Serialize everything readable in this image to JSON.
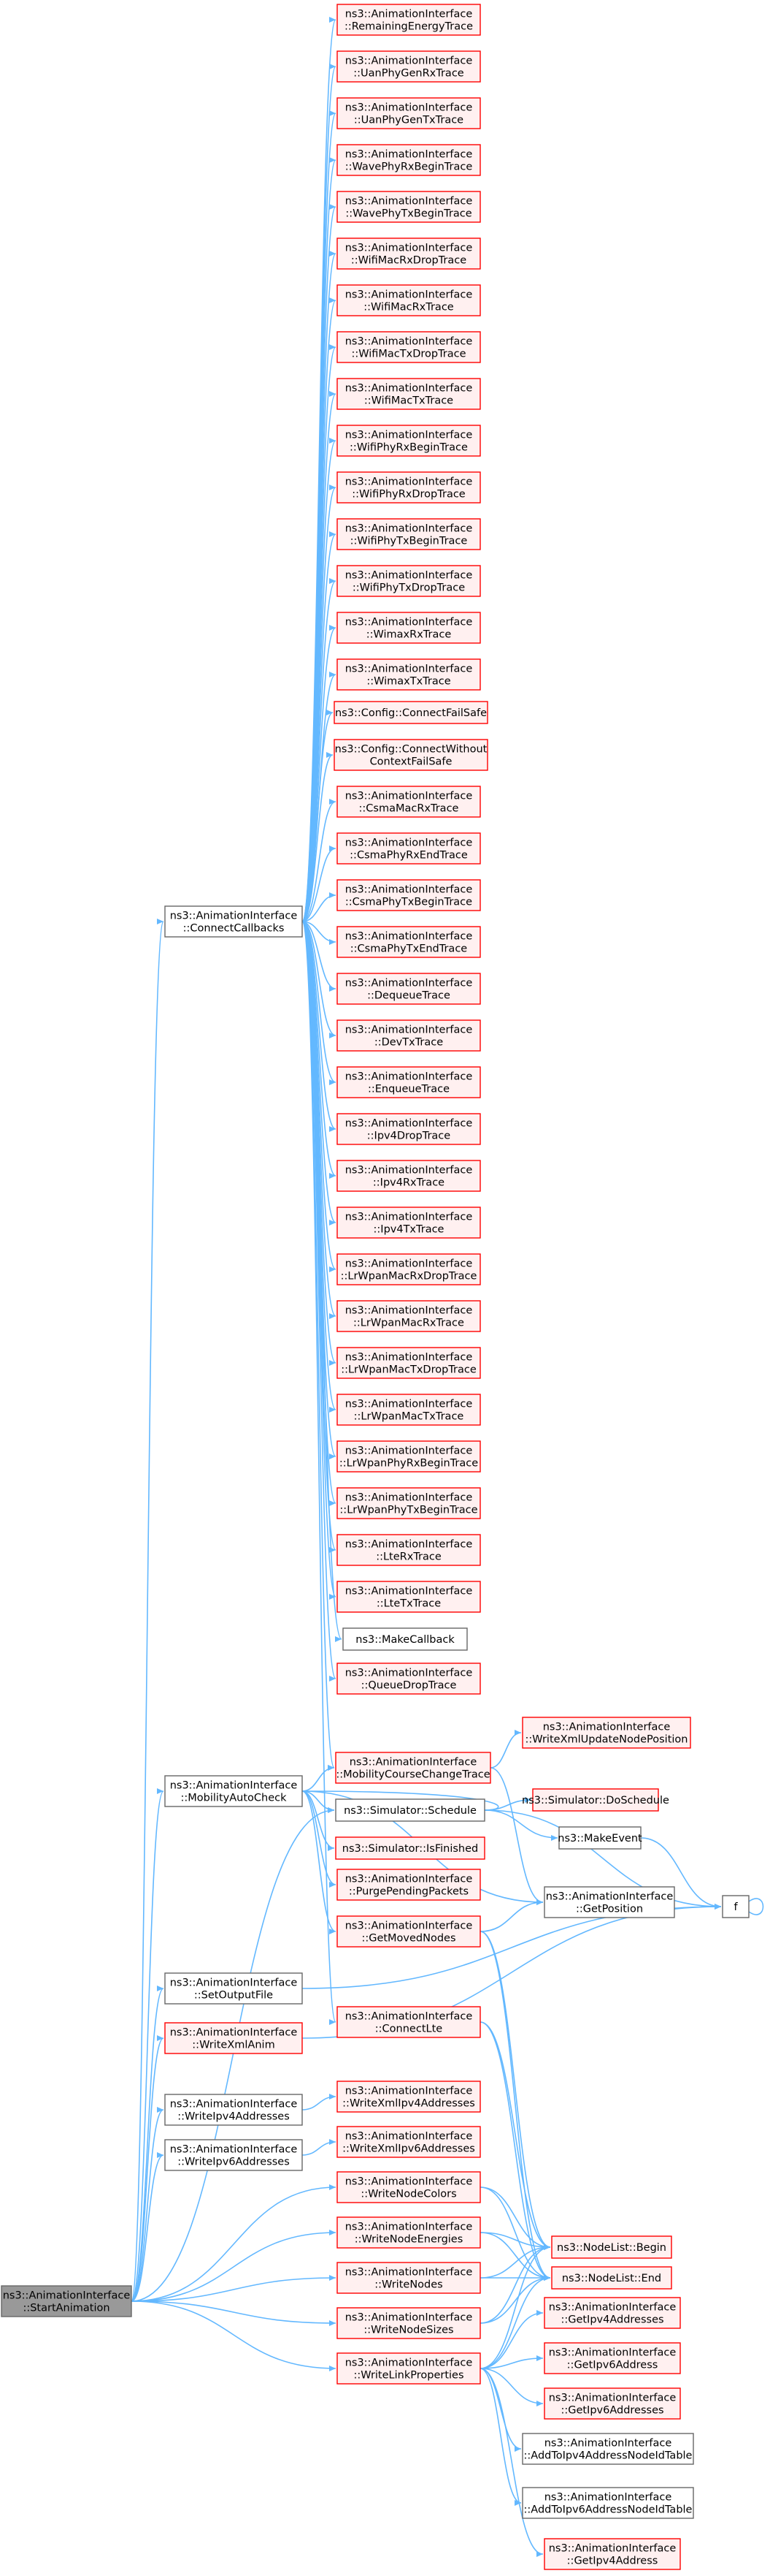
{
  "colors": {
    "edge": "#63b8ff",
    "red_border": "#ff0000",
    "red_fill": "#fff0f0",
    "plain_border": "#666666",
    "plain_fill": "#ffffff",
    "root_fill": "#999999",
    "root_border": "#666666"
  },
  "nodes": [
    {
      "id": "root",
      "lines": [
        "ns3::AnimationInterface",
        "::StartAnimation"
      ],
      "style": "root"
    },
    {
      "id": "cc",
      "lines": [
        "ns3::AnimationInterface",
        "::ConnectCallbacks"
      ],
      "style": "plain"
    },
    {
      "id": "mac",
      "lines": [
        "ns3::AnimationInterface",
        "::MobilityAutoCheck"
      ],
      "style": "plain"
    },
    {
      "id": "sof",
      "lines": [
        "ns3::AnimationInterface",
        "::SetOutputFile"
      ],
      "style": "plain"
    },
    {
      "id": "wxa",
      "lines": [
        "ns3::AnimationInterface",
        "::WriteXmlAnim"
      ],
      "style": "red"
    },
    {
      "id": "w4a",
      "lines": [
        "ns3::AnimationInterface",
        "::WriteIpv4Addresses"
      ],
      "style": "plain"
    },
    {
      "id": "w6a",
      "lines": [
        "ns3::AnimationInterface",
        "::WriteIpv6Addresses"
      ],
      "style": "plain"
    },
    {
      "id": "rem",
      "lines": [
        "ns3::AnimationInterface",
        "::RemainingEnergyTrace"
      ],
      "style": "red"
    },
    {
      "id": "uanrx",
      "lines": [
        "ns3::AnimationInterface",
        "::UanPhyGenRxTrace"
      ],
      "style": "red"
    },
    {
      "id": "uantx",
      "lines": [
        "ns3::AnimationInterface",
        "::UanPhyGenTxTrace"
      ],
      "style": "red"
    },
    {
      "id": "waverx",
      "lines": [
        "ns3::AnimationInterface",
        "::WavePhyRxBeginTrace"
      ],
      "style": "red"
    },
    {
      "id": "wavetx",
      "lines": [
        "ns3::AnimationInterface",
        "::WavePhyTxBeginTrace"
      ],
      "style": "red"
    },
    {
      "id": "wmrd",
      "lines": [
        "ns3::AnimationInterface",
        "::WifiMacRxDropTrace"
      ],
      "style": "red"
    },
    {
      "id": "wmr",
      "lines": [
        "ns3::AnimationInterface",
        "::WifiMacRxTrace"
      ],
      "style": "red"
    },
    {
      "id": "wmtd",
      "lines": [
        "ns3::AnimationInterface",
        "::WifiMacTxDropTrace"
      ],
      "style": "red"
    },
    {
      "id": "wmt",
      "lines": [
        "ns3::AnimationInterface",
        "::WifiMacTxTrace"
      ],
      "style": "red"
    },
    {
      "id": "wprb",
      "lines": [
        "ns3::AnimationInterface",
        "::WifiPhyRxBeginTrace"
      ],
      "style": "red"
    },
    {
      "id": "wprd",
      "lines": [
        "ns3::AnimationInterface",
        "::WifiPhyRxDropTrace"
      ],
      "style": "red"
    },
    {
      "id": "wptb",
      "lines": [
        "ns3::AnimationInterface",
        "::WifiPhyTxBeginTrace"
      ],
      "style": "red"
    },
    {
      "id": "wptd",
      "lines": [
        "ns3::AnimationInterface",
        "::WifiPhyTxDropTrace"
      ],
      "style": "red"
    },
    {
      "id": "wxr",
      "lines": [
        "ns3::AnimationInterface",
        "::WimaxRxTrace"
      ],
      "style": "red"
    },
    {
      "id": "wxt",
      "lines": [
        "ns3::AnimationInterface",
        "::WimaxTxTrace"
      ],
      "style": "red"
    },
    {
      "id": "cfs",
      "lines": [
        "ns3::Config::ConnectFailSafe"
      ],
      "style": "red"
    },
    {
      "id": "cwcfs",
      "lines": [
        "ns3::Config::ConnectWithout",
        "ContextFailSafe"
      ],
      "style": "red"
    },
    {
      "id": "cmr",
      "lines": [
        "ns3::AnimationInterface",
        "::CsmaMacRxTrace"
      ],
      "style": "red"
    },
    {
      "id": "cpre",
      "lines": [
        "ns3::AnimationInterface",
        "::CsmaPhyRxEndTrace"
      ],
      "style": "red"
    },
    {
      "id": "cptb",
      "lines": [
        "ns3::AnimationInterface",
        "::CsmaPhyTxBeginTrace"
      ],
      "style": "red"
    },
    {
      "id": "cpte",
      "lines": [
        "ns3::AnimationInterface",
        "::CsmaPhyTxEndTrace"
      ],
      "style": "red"
    },
    {
      "id": "deq",
      "lines": [
        "ns3::AnimationInterface",
        "::DequeueTrace"
      ],
      "style": "red"
    },
    {
      "id": "devtx",
      "lines": [
        "ns3::AnimationInterface",
        "::DevTxTrace"
      ],
      "style": "red"
    },
    {
      "id": "enq",
      "lines": [
        "ns3::AnimationInterface",
        "::EnqueueTrace"
      ],
      "style": "red"
    },
    {
      "id": "i4d",
      "lines": [
        "ns3::AnimationInterface",
        "::Ipv4DropTrace"
      ],
      "style": "red"
    },
    {
      "id": "i4r",
      "lines": [
        "ns3::AnimationInterface",
        "::Ipv4RxTrace"
      ],
      "style": "red"
    },
    {
      "id": "i4t",
      "lines": [
        "ns3::AnimationInterface",
        "::Ipv4TxTrace"
      ],
      "style": "red"
    },
    {
      "id": "lmrd",
      "lines": [
        "ns3::AnimationInterface",
        "::LrWpanMacRxDropTrace"
      ],
      "style": "red"
    },
    {
      "id": "lmr",
      "lines": [
        "ns3::AnimationInterface",
        "::LrWpanMacRxTrace"
      ],
      "style": "red"
    },
    {
      "id": "lmtd",
      "lines": [
        "ns3::AnimationInterface",
        "::LrWpanMacTxDropTrace"
      ],
      "style": "red"
    },
    {
      "id": "lmt",
      "lines": [
        "ns3::AnimationInterface",
        "::LrWpanMacTxTrace"
      ],
      "style": "red"
    },
    {
      "id": "lprb",
      "lines": [
        "ns3::AnimationInterface",
        "::LrWpanPhyRxBeginTrace"
      ],
      "style": "red"
    },
    {
      "id": "lptb",
      "lines": [
        "ns3::AnimationInterface",
        "::LrWpanPhyTxBeginTrace"
      ],
      "style": "red"
    },
    {
      "id": "lter",
      "lines": [
        "ns3::AnimationInterface",
        "::LteRxTrace"
      ],
      "style": "red"
    },
    {
      "id": "ltet",
      "lines": [
        "ns3::AnimationInterface",
        "::LteTxTrace"
      ],
      "style": "red"
    },
    {
      "id": "mcb",
      "lines": [
        "ns3::MakeCallback"
      ],
      "style": "plain"
    },
    {
      "id": "qdt",
      "lines": [
        "ns3::AnimationInterface",
        "::QueueDropTrace"
      ],
      "style": "red"
    },
    {
      "id": "mcct",
      "lines": [
        "ns3::AnimationInterface",
        "::MobilityCourseChangeTrace"
      ],
      "style": "red"
    },
    {
      "id": "sched",
      "lines": [
        "ns3::Simulator::Schedule"
      ],
      "style": "plain"
    },
    {
      "id": "isfin",
      "lines": [
        "ns3::Simulator::IsFinished"
      ],
      "style": "red"
    },
    {
      "id": "ppp",
      "lines": [
        "ns3::AnimationInterface",
        "::PurgePendingPackets"
      ],
      "style": "red"
    },
    {
      "id": "gmn",
      "lines": [
        "ns3::AnimationInterface",
        "::GetMovedNodes"
      ],
      "style": "red"
    },
    {
      "id": "clte",
      "lines": [
        "ns3::AnimationInterface",
        "::ConnectLte"
      ],
      "style": "red"
    },
    {
      "id": "wx4a",
      "lines": [
        "ns3::AnimationInterface",
        "::WriteXmlIpv4Addresses"
      ],
      "style": "red"
    },
    {
      "id": "wx6a",
      "lines": [
        "ns3::AnimationInterface",
        "::WriteXmlIpv6Addresses"
      ],
      "style": "red"
    },
    {
      "id": "wnc",
      "lines": [
        "ns3::AnimationInterface",
        "::WriteNodeColors"
      ],
      "style": "red"
    },
    {
      "id": "wne",
      "lines": [
        "ns3::AnimationInterface",
        "::WriteNodeEnergies"
      ],
      "style": "red"
    },
    {
      "id": "wn",
      "lines": [
        "ns3::AnimationInterface",
        "::WriteNodes"
      ],
      "style": "red"
    },
    {
      "id": "wns",
      "lines": [
        "ns3::AnimationInterface",
        "::WriteNodeSizes"
      ],
      "style": "red"
    },
    {
      "id": "wlp",
      "lines": [
        "ns3::AnimationInterface",
        "::WriteLinkProperties"
      ],
      "style": "red"
    },
    {
      "id": "wxunp",
      "lines": [
        "ns3::AnimationInterface",
        "::WriteXmlUpdateNodePosition"
      ],
      "style": "red"
    },
    {
      "id": "dosch",
      "lines": [
        "ns3::Simulator::DoSchedule"
      ],
      "style": "red"
    },
    {
      "id": "mkev",
      "lines": [
        "ns3::MakeEvent"
      ],
      "style": "plain"
    },
    {
      "id": "getpos",
      "lines": [
        "ns3::AnimationInterface",
        "::GetPosition"
      ],
      "style": "plain"
    },
    {
      "id": "f",
      "lines": [
        "f"
      ],
      "style": "plain"
    },
    {
      "id": "nlbegin",
      "lines": [
        "ns3::NodeList::Begin"
      ],
      "style": "red"
    },
    {
      "id": "nlend",
      "lines": [
        "ns3::NodeList::End"
      ],
      "style": "red"
    },
    {
      "id": "g4a",
      "lines": [
        "ns3::AnimationInterface",
        "::GetIpv4Addresses"
      ],
      "style": "red"
    },
    {
      "id": "g6a",
      "lines": [
        "ns3::AnimationInterface",
        "::GetIpv6Address"
      ],
      "style": "red"
    },
    {
      "id": "g6as",
      "lines": [
        "ns3::AnimationInterface",
        "::GetIpv6Addresses"
      ],
      "style": "red"
    },
    {
      "id": "at4",
      "lines": [
        "ns3::AnimationInterface",
        "::AddToIpv4AddressNodeIdTable"
      ],
      "style": "plain"
    },
    {
      "id": "at6",
      "lines": [
        "ns3::AnimationInterface",
        "::AddToIpv6AddressNodeIdTable"
      ],
      "style": "plain"
    },
    {
      "id": "g4addr",
      "lines": [
        "ns3::AnimationInterface",
        "::GetIpv4Address"
      ],
      "style": "red"
    }
  ]
}
